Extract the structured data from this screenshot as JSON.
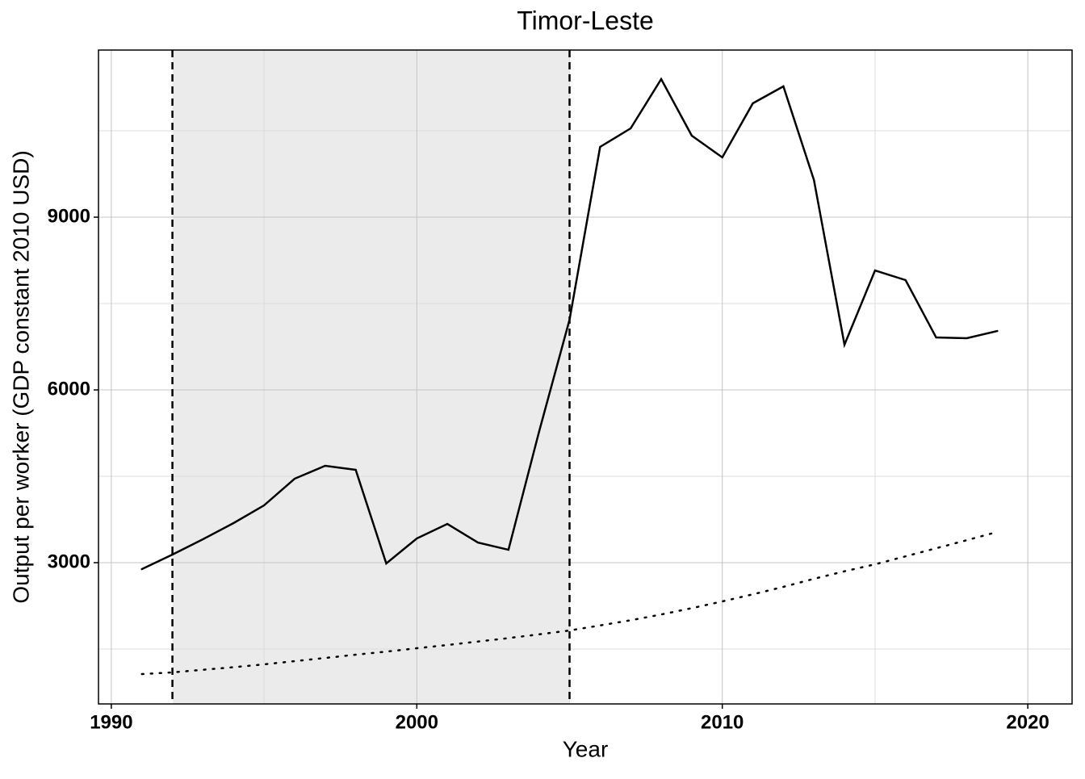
{
  "chart_data": {
    "type": "line",
    "title": "Timor-Leste",
    "x_label": "Year",
    "y_label": "Output per worker (GDP constant 2010 USD)",
    "x": [
      1991,
      1992,
      1993,
      1994,
      1995,
      1996,
      1997,
      1998,
      1999,
      2000,
      2001,
      2002,
      2003,
      2004,
      2005,
      2006,
      2007,
      2008,
      2009,
      2010,
      2011,
      2012,
      2013,
      2014,
      2015,
      2016,
      2017,
      2018,
      2019
    ],
    "series": [
      {
        "color": "#000000",
        "style": "solid",
        "values": [
          2888,
          3140,
          3407,
          3687,
          3995,
          4458,
          4682,
          4612,
          2986,
          3420,
          3673,
          3350,
          3224,
          5271,
          7220,
          10220,
          10542,
          11397,
          10416,
          10038,
          10977,
          11271,
          9645,
          6785,
          8075,
          7907,
          6911,
          6897,
          7023
        ]
      },
      {
        "color": "#000000",
        "style": "dotted",
        "values": [
          1065,
          1095,
          1140,
          1185,
          1234,
          1290,
          1345,
          1402,
          1455,
          1514,
          1570,
          1630,
          1690,
          1755,
          1822,
          1910,
          2000,
          2100,
          2210,
          2327,
          2450,
          2580,
          2720,
          2850,
          2972,
          3110,
          3250,
          3390,
          3533
        ]
      }
    ],
    "shaded_region": [
      1992,
      2005
    ],
    "xlim": [
      1989.58,
      2021.45
    ],
    "ylim": [
      547,
      11902
    ],
    "xticks": [
      1990,
      2000,
      2010,
      2020
    ],
    "yticks": [
      3000,
      6000,
      9000
    ],
    "xminor": [
      1995,
      2005,
      2015
    ],
    "yminor": [
      1500,
      4500,
      7500,
      10500
    ],
    "grid": true
  }
}
